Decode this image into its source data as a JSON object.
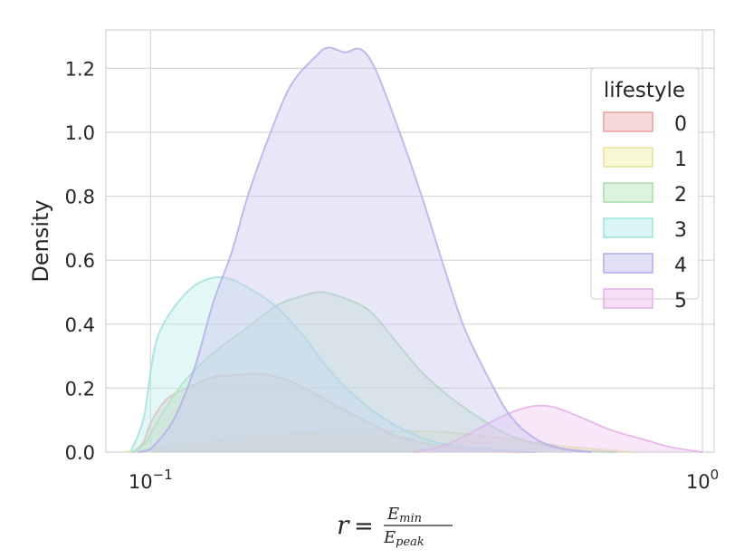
{
  "chart_data": {
    "type": "area",
    "xscale": "log",
    "xlim": [
      0.083,
      1.05
    ],
    "ylim": [
      0,
      1.32
    ],
    "xticks": [
      {
        "value": 0.1,
        "base": "10",
        "exp": "−1"
      },
      {
        "value": 1.0,
        "base": "10",
        "exp": "0"
      }
    ],
    "yticks": [
      0.0,
      0.2,
      0.4,
      0.6,
      0.8,
      1.0,
      1.2
    ],
    "ytick_labels": [
      "0.0",
      "0.2",
      "0.4",
      "0.6",
      "0.8",
      "1.0",
      "1.2"
    ],
    "ylabel": "Density",
    "xlabel": {
      "lhs": "r",
      "eq": "=",
      "numerator": "E",
      "numerator_sub": "min",
      "denominator": "E",
      "denominator_sub": "peak"
    },
    "grid": true,
    "legend": {
      "title": "lifestyle",
      "placement": "top-right"
    },
    "series": [
      {
        "name": "0",
        "color": "#f2b8b4",
        "stroke": "#e8a0a0",
        "points": [
          [
            0.093,
            0
          ],
          [
            0.097,
            0.03
          ],
          [
            0.1,
            0.09
          ],
          [
            0.105,
            0.15
          ],
          [
            0.11,
            0.18
          ],
          [
            0.12,
            0.21
          ],
          [
            0.13,
            0.235
          ],
          [
            0.14,
            0.24
          ],
          [
            0.155,
            0.245
          ],
          [
            0.165,
            0.24
          ],
          [
            0.18,
            0.22
          ],
          [
            0.2,
            0.18
          ],
          [
            0.22,
            0.14
          ],
          [
            0.25,
            0.09
          ],
          [
            0.28,
            0.05
          ],
          [
            0.32,
            0.025
          ],
          [
            0.36,
            0.01
          ],
          [
            0.42,
            0.003
          ],
          [
            0.5,
            0
          ]
        ]
      },
      {
        "name": "1",
        "color": "#f3f0b5",
        "stroke": "#e6e09a",
        "points": [
          [
            0.09,
            0
          ],
          [
            0.1,
            0.01
          ],
          [
            0.12,
            0.025
          ],
          [
            0.15,
            0.045
          ],
          [
            0.2,
            0.06
          ],
          [
            0.26,
            0.065
          ],
          [
            0.32,
            0.065
          ],
          [
            0.38,
            0.055
          ],
          [
            0.45,
            0.04
          ],
          [
            0.55,
            0.02
          ],
          [
            0.65,
            0.008
          ],
          [
            0.75,
            0
          ]
        ]
      },
      {
        "name": "2",
        "color": "#bfe9c3",
        "stroke": "#a4dba9",
        "points": [
          [
            0.093,
            0
          ],
          [
            0.098,
            0.03
          ],
          [
            0.105,
            0.12
          ],
          [
            0.115,
            0.22
          ],
          [
            0.13,
            0.31
          ],
          [
            0.15,
            0.39
          ],
          [
            0.17,
            0.46
          ],
          [
            0.19,
            0.49
          ],
          [
            0.205,
            0.5
          ],
          [
            0.225,
            0.48
          ],
          [
            0.25,
            0.44
          ],
          [
            0.28,
            0.34
          ],
          [
            0.31,
            0.25
          ],
          [
            0.35,
            0.17
          ],
          [
            0.4,
            0.1
          ],
          [
            0.45,
            0.05
          ],
          [
            0.52,
            0.02
          ],
          [
            0.6,
            0.005
          ],
          [
            0.7,
            0
          ]
        ]
      },
      {
        "name": "3",
        "color": "#bcedeb",
        "stroke": "#9ee0dd",
        "points": [
          [
            0.092,
            0
          ],
          [
            0.097,
            0.1
          ],
          [
            0.1,
            0.25
          ],
          [
            0.103,
            0.36
          ],
          [
            0.11,
            0.45
          ],
          [
            0.12,
            0.52
          ],
          [
            0.13,
            0.545
          ],
          [
            0.14,
            0.54
          ],
          [
            0.155,
            0.5
          ],
          [
            0.17,
            0.45
          ],
          [
            0.19,
            0.36
          ],
          [
            0.21,
            0.26
          ],
          [
            0.24,
            0.16
          ],
          [
            0.28,
            0.08
          ],
          [
            0.33,
            0.03
          ],
          [
            0.4,
            0.01
          ],
          [
            0.5,
            0
          ]
        ]
      },
      {
        "name": "4",
        "color": "#c9c6ef",
        "stroke": "#b0acea",
        "points": [
          [
            0.095,
            0
          ],
          [
            0.1,
            0.01
          ],
          [
            0.11,
            0.1
          ],
          [
            0.12,
            0.26
          ],
          [
            0.13,
            0.47
          ],
          [
            0.14,
            0.62
          ],
          [
            0.15,
            0.8
          ],
          [
            0.165,
            1.0
          ],
          [
            0.18,
            1.15
          ],
          [
            0.2,
            1.24
          ],
          [
            0.21,
            1.265
          ],
          [
            0.225,
            1.25
          ],
          [
            0.24,
            1.26
          ],
          [
            0.255,
            1.2
          ],
          [
            0.28,
            1.02
          ],
          [
            0.31,
            0.8
          ],
          [
            0.34,
            0.58
          ],
          [
            0.37,
            0.39
          ],
          [
            0.41,
            0.23
          ],
          [
            0.45,
            0.11
          ],
          [
            0.5,
            0.04
          ],
          [
            0.56,
            0.01
          ],
          [
            0.63,
            0
          ]
        ]
      },
      {
        "name": "5",
        "color": "#efc5ef",
        "stroke": "#e3aee3",
        "points": [
          [
            0.3,
            0
          ],
          [
            0.34,
            0.02
          ],
          [
            0.38,
            0.06
          ],
          [
            0.42,
            0.1
          ],
          [
            0.46,
            0.13
          ],
          [
            0.5,
            0.145
          ],
          [
            0.54,
            0.14
          ],
          [
            0.6,
            0.11
          ],
          [
            0.68,
            0.07
          ],
          [
            0.78,
            0.04
          ],
          [
            0.88,
            0.015
          ],
          [
            1.0,
            0
          ]
        ]
      }
    ]
  }
}
